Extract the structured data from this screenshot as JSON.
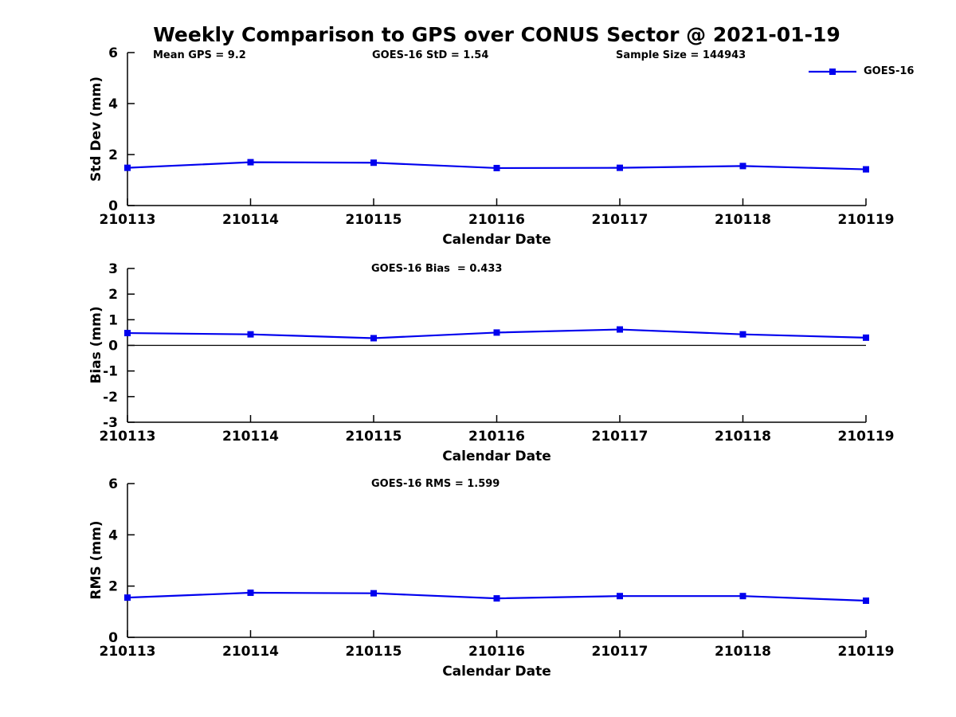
{
  "title": "Weekly Comparison to GPS over CONUS Sector @ 2021-01-19",
  "legend": {
    "label": "GOES-16"
  },
  "colors": {
    "line": "#0000ee",
    "axis": "#000000",
    "text": "#000000",
    "background": "#ffffff"
  },
  "chart_data": [
    {
      "type": "line",
      "title": "",
      "ylabel": "Std Dev (mm)",
      "xlabel": "Calendar Date",
      "ylim": [
        0,
        6
      ],
      "yticks": [
        0,
        2,
        4,
        6
      ],
      "grid": false,
      "legend_position": "top-right",
      "annotations": [
        "Mean GPS = 9.2",
        "GOES-16 StD = 1.54",
        "Sample Size = 144943"
      ],
      "categories": [
        "210113",
        "210114",
        "210115",
        "210116",
        "210117",
        "210118",
        "210119"
      ],
      "series": [
        {
          "name": "GOES-16",
          "values": [
            1.48,
            1.7,
            1.68,
            1.47,
            1.48,
            1.55,
            1.42
          ]
        }
      ]
    },
    {
      "type": "line",
      "title": "GOES-16 Bias  = 0.433",
      "ylabel": "Bias (mm)",
      "xlabel": "Calendar Date",
      "ylim": [
        -3,
        3
      ],
      "yticks": [
        -3,
        -2,
        -1,
        0,
        1,
        2,
        3
      ],
      "zero_line": true,
      "grid": false,
      "categories": [
        "210113",
        "210114",
        "210115",
        "210116",
        "210117",
        "210118",
        "210119"
      ],
      "series": [
        {
          "name": "GOES-16",
          "values": [
            0.48,
            0.43,
            0.28,
            0.5,
            0.62,
            0.43,
            0.3
          ]
        }
      ]
    },
    {
      "type": "line",
      "title": "GOES-16 RMS = 1.599",
      "ylabel": "RMS (mm)",
      "xlabel": "Calendar Date",
      "ylim": [
        0,
        6
      ],
      "yticks": [
        0,
        2,
        4,
        6
      ],
      "grid": false,
      "categories": [
        "210113",
        "210114",
        "210115",
        "210116",
        "210117",
        "210118",
        "210119"
      ],
      "series": [
        {
          "name": "GOES-16",
          "values": [
            1.55,
            1.74,
            1.72,
            1.52,
            1.61,
            1.61,
            1.43
          ]
        }
      ]
    }
  ]
}
